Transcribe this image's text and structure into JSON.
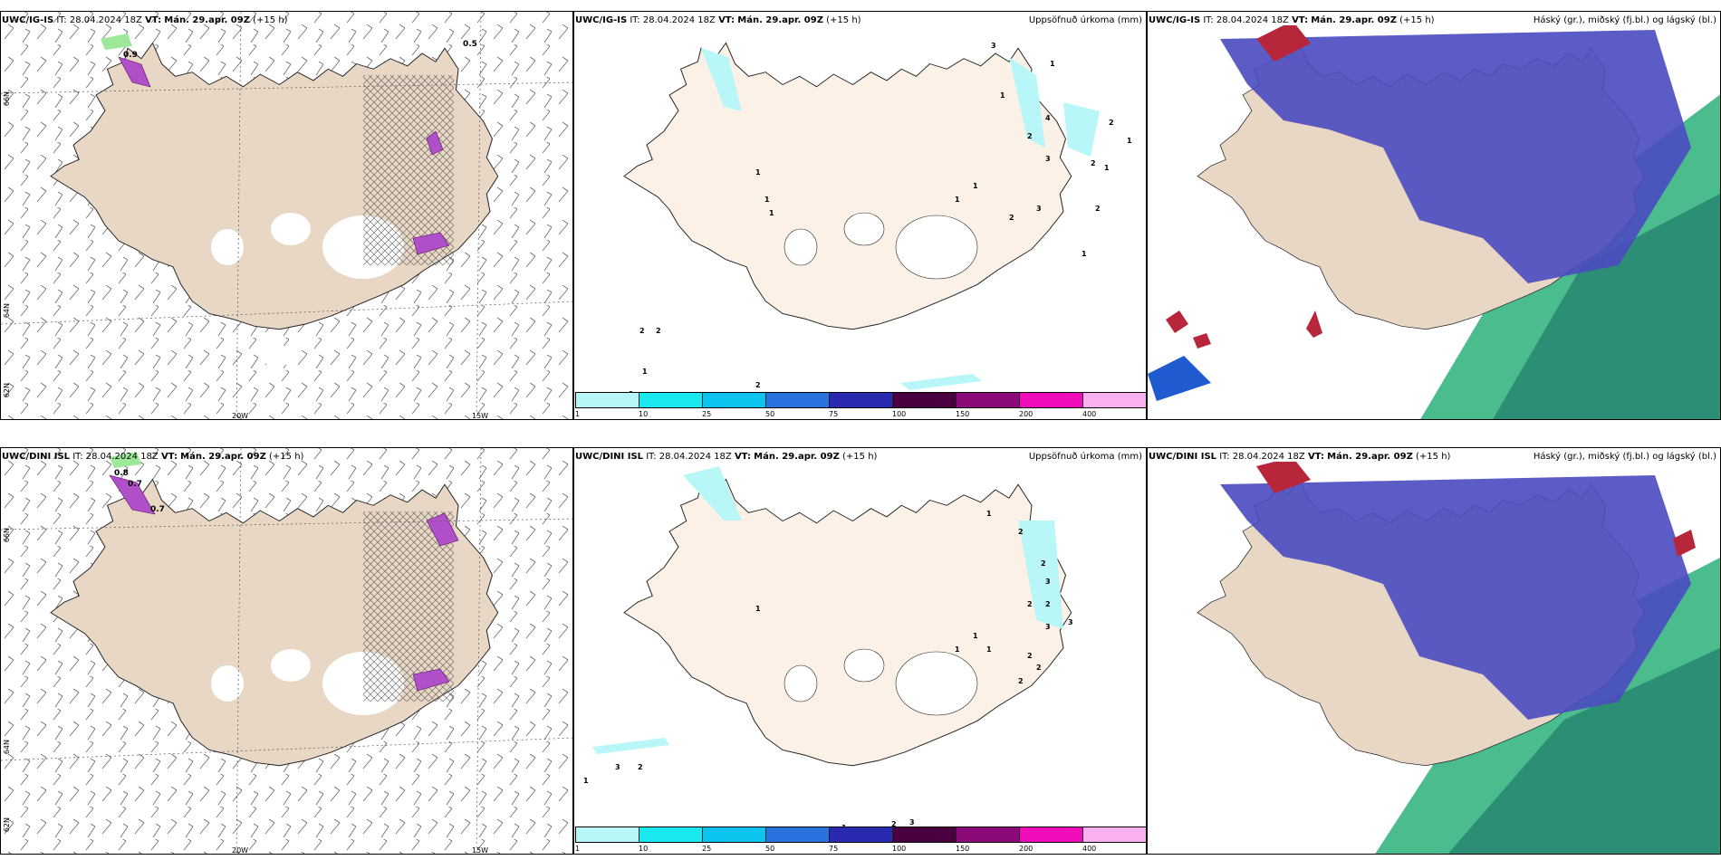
{
  "rows": [
    {
      "model": "UWC/IG-IS",
      "it_label": "IT:",
      "it_value": "28.04.2024 18Z",
      "vt_label": "VT:",
      "vt_value": "Mán. 29.apr. 09Z",
      "lead": "(+15 h)"
    },
    {
      "model": "UWC/DINI ISL",
      "it_label": "IT:",
      "it_value": "28.04.2024 18Z",
      "vt_label": "VT:",
      "vt_value": "Mán. 29.apr. 09Z",
      "lead": "(+15 h)"
    }
  ],
  "precip_title": "Uppsöfnuð úrkoma (mm)",
  "cloud_title": "Háský (gr.), miðský (fj.bl.) og lágský (bl.)",
  "axis_labels": {
    "lat66_left": "66N",
    "lat66_right": "66N",
    "lat64_left": "64N",
    "lat64_right": "64N",
    "lat62": "62N",
    "lon20": "20W",
    "lon15": "15W"
  },
  "colorbar": {
    "ticks": [
      "1",
      "10",
      "25",
      "50",
      "75",
      "100",
      "150",
      "200",
      "400"
    ],
    "colors": [
      "#b8f6f8",
      "#19e8ee",
      "#0cc4ee",
      "#2a72e0",
      "#2a2ab0",
      "#4a0040",
      "#8c0a78",
      "#f00cb8",
      "#f8b0f0"
    ]
  },
  "panel1_top_numbers": [
    "0.5",
    "0.9"
  ],
  "panel1_bottom_numbers": [
    "0.8",
    "0.7",
    "0.7"
  ],
  "panel2_top_numbers": [
    "3",
    "1",
    "1",
    "2",
    "4",
    "2",
    "1",
    "3",
    "2",
    "3",
    "2",
    "1",
    "1",
    "1",
    "1",
    "1",
    "2",
    "2",
    "2",
    "1",
    "1",
    "2",
    "1",
    "1"
  ],
  "panel2_bottom_numbers": [
    "1",
    "2",
    "2",
    "3",
    "2",
    "2",
    "3",
    "3",
    "2",
    "1",
    "1",
    "1",
    "2",
    "2",
    "1",
    "3",
    "2",
    "1",
    "2",
    "3",
    "1"
  ],
  "colors": {
    "land": "#e8d7c5",
    "land_light": "#fcf1e6",
    "mid_cloud": "#4a4ac0",
    "high_cloud": "#2bb07a",
    "low_cloud": "#1f5ad0",
    "red_cloud": "#b8263c"
  }
}
